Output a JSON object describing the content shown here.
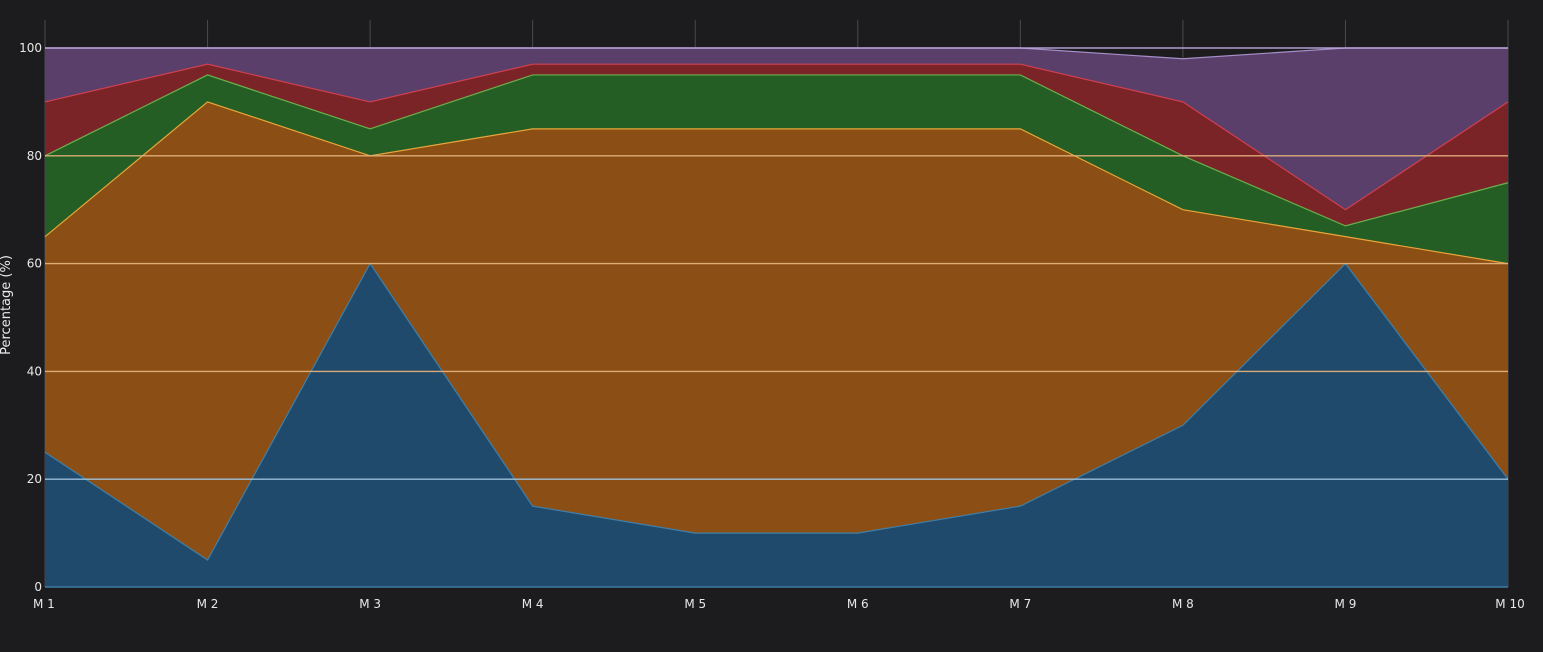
{
  "chart_data": {
    "type": "area",
    "stacked": true,
    "categories": [
      "M 1",
      "M 2",
      "M 3",
      "M 4",
      "M 5",
      "M 6",
      "M 7",
      "M 8",
      "M 9",
      "M 10"
    ],
    "ylabel": "Percentage (%)",
    "ylim": [
      0,
      100
    ],
    "yticks": [
      "0",
      "20",
      "40",
      "60",
      "80",
      "100"
    ],
    "grid": true,
    "series": [
      {
        "color": "#1f4a6b",
        "line": "#3f7fa8",
        "values": [
          25,
          5,
          60,
          15,
          10,
          10,
          15,
          30,
          60,
          20
        ]
      },
      {
        "color": "#8b4f16",
        "line": "#e8a53a",
        "values": [
          40,
          85,
          20,
          70,
          75,
          75,
          70,
          40,
          5,
          40
        ]
      },
      {
        "color": "#245e24",
        "line": "#6ab04c",
        "values": [
          15,
          5,
          5,
          10,
          10,
          10,
          10,
          10,
          2,
          15
        ]
      },
      {
        "color": "#7b2428",
        "line": "#d04050",
        "values": [
          10,
          2,
          5,
          2,
          2,
          2,
          2,
          10,
          3,
          15
        ]
      },
      {
        "color": "#5a3f6b",
        "line": "#a58fc7",
        "values": [
          10,
          3,
          10,
          3,
          3,
          3,
          3,
          8,
          30,
          10
        ]
      }
    ]
  }
}
